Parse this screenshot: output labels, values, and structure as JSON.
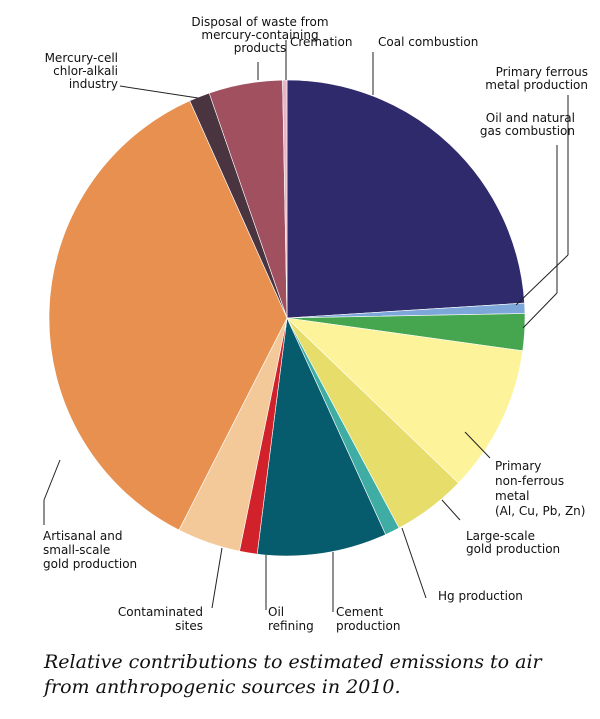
{
  "caption": "Relative contributions to estimated emissions to air from anthropogenic sources in 2010.",
  "chart_data": {
    "type": "pie",
    "title": "",
    "start": "12 o'clock",
    "direction": "clockwise",
    "legend": "none (callout labels)",
    "slices": [
      {
        "label": [
          "Coal combustion"
        ],
        "value": 24.0,
        "color": "#2e2a6b"
      },
      {
        "label": [
          "Primary ferrous",
          "metal production"
        ],
        "value": 0.7,
        "color": "#7da7d8"
      },
      {
        "label": [
          "Oil and natural",
          "gas combustion"
        ],
        "value": 2.5,
        "color": "#45a64f"
      },
      {
        "label": [
          "Primary",
          "non-ferrous",
          "metal",
          "(Al, Cu, Pb, Zn)"
        ],
        "value": 10.0,
        "color": "#fdf39a"
      },
      {
        "label": [
          "Large-scale",
          "gold production"
        ],
        "value": 5.0,
        "color": "#e7dd6a"
      },
      {
        "label": [
          "Hg production"
        ],
        "value": 1.0,
        "color": "#3fada3"
      },
      {
        "label": [
          "Cement",
          "production"
        ],
        "value": 8.8,
        "color": "#065b6c"
      },
      {
        "label": [
          "Oil",
          "refining"
        ],
        "value": 1.2,
        "color": "#d1222b"
      },
      {
        "label": [
          "Contaminated",
          "sites"
        ],
        "value": 4.3,
        "color": "#f4c99a"
      },
      {
        "label": [
          "Artisanal and",
          "small-scale",
          "gold production"
        ],
        "value": 35.8,
        "color": "#e8904f"
      },
      {
        "label": [
          "Mercury-cell",
          "chlor-alkali",
          "industry"
        ],
        "value": 1.4,
        "color": "#4a3440"
      },
      {
        "label": [
          "Disposal of waste from",
          "mercury-containing",
          "products"
        ],
        "value": 5.0,
        "color": "#a0505e"
      },
      {
        "label": [
          "Cremation"
        ],
        "value": 0.3,
        "color": "#e8b4c8"
      }
    ]
  }
}
